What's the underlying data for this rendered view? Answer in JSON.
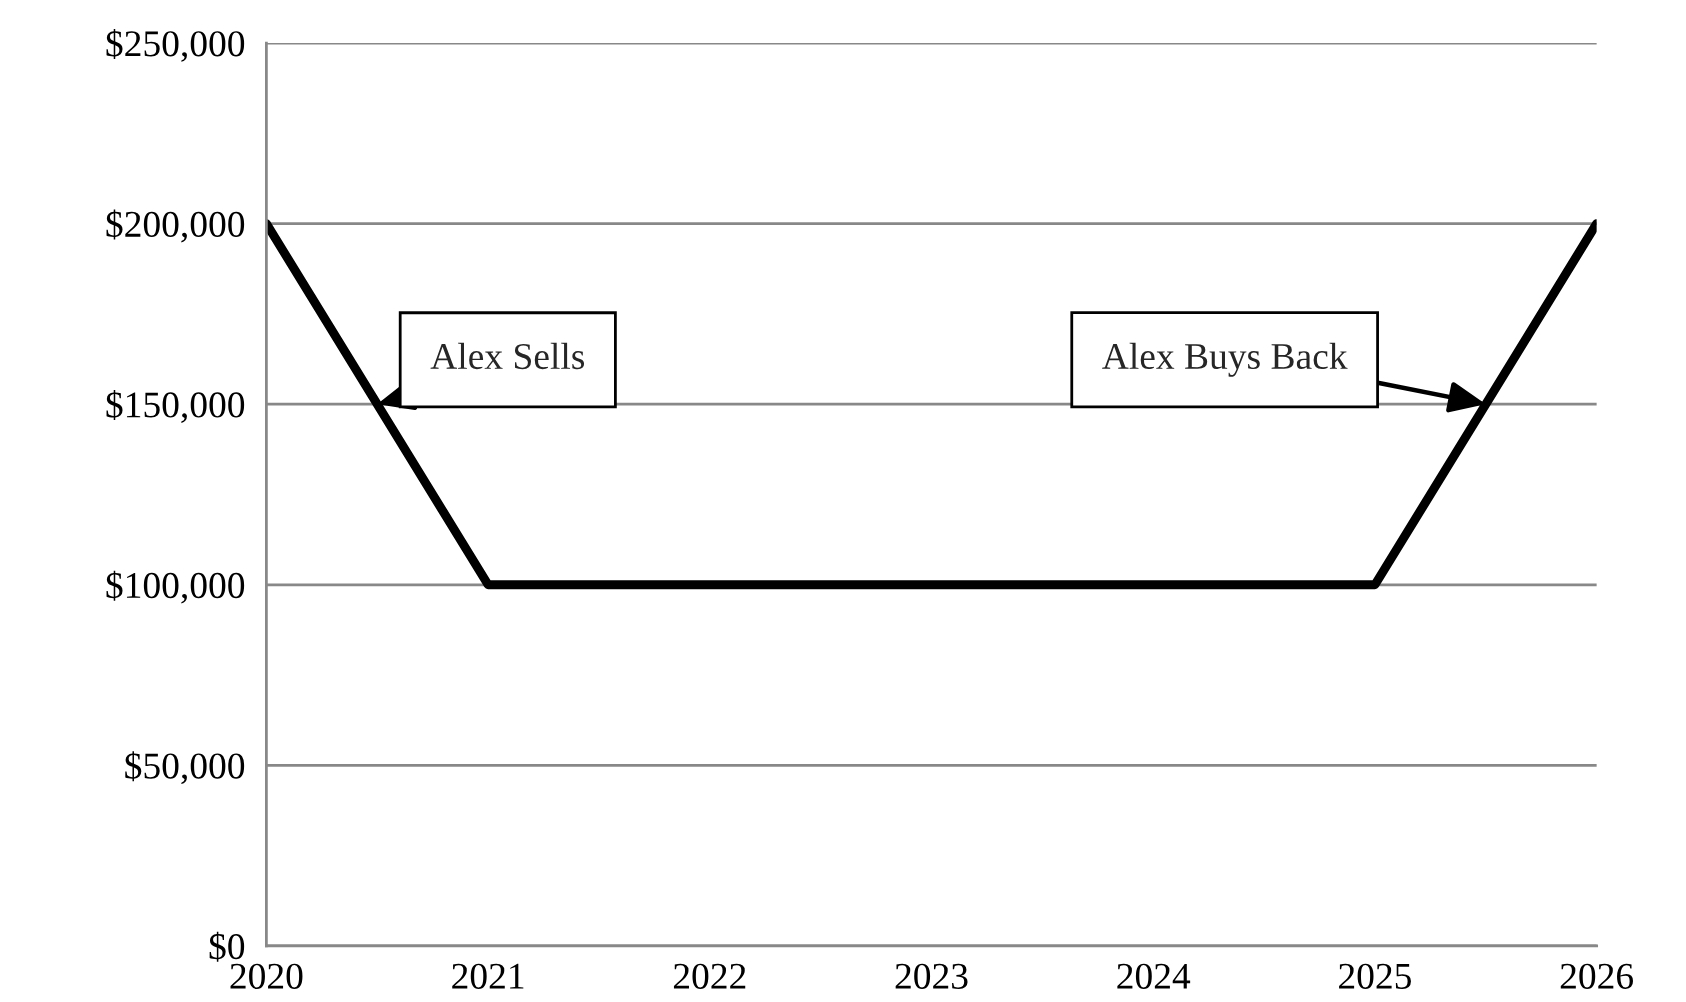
{
  "chart_data": {
    "type": "line",
    "x": [
      2020,
      2021,
      2025,
      2026
    ],
    "series": [
      {
        "color": "#000000",
        "values": [
          200000,
          100000,
          100000,
          200000
        ]
      }
    ],
    "xlim": [
      2020,
      2026
    ],
    "xticks": [
      2020,
      2021,
      2022,
      2023,
      2024,
      2025,
      2026
    ],
    "ylim": [
      0,
      250000
    ],
    "yticks": [
      {
        "value": 0,
        "label": "$0"
      },
      {
        "value": 50000,
        "label": "$50,000"
      },
      {
        "value": 100000,
        "label": "$100,000"
      },
      {
        "value": 150000,
        "label": "$150,000"
      },
      {
        "value": 200000,
        "label": "$200,000"
      },
      {
        "value": 250000,
        "label": "$250,000"
      }
    ],
    "grid": "y",
    "line_style": "solid",
    "annotations": [
      {
        "text": "Alex Sells",
        "x": 2020.5,
        "y": 150000
      },
      {
        "text": "Alex Buys Back",
        "x": 2025.5,
        "y": 150000
      }
    ]
  }
}
